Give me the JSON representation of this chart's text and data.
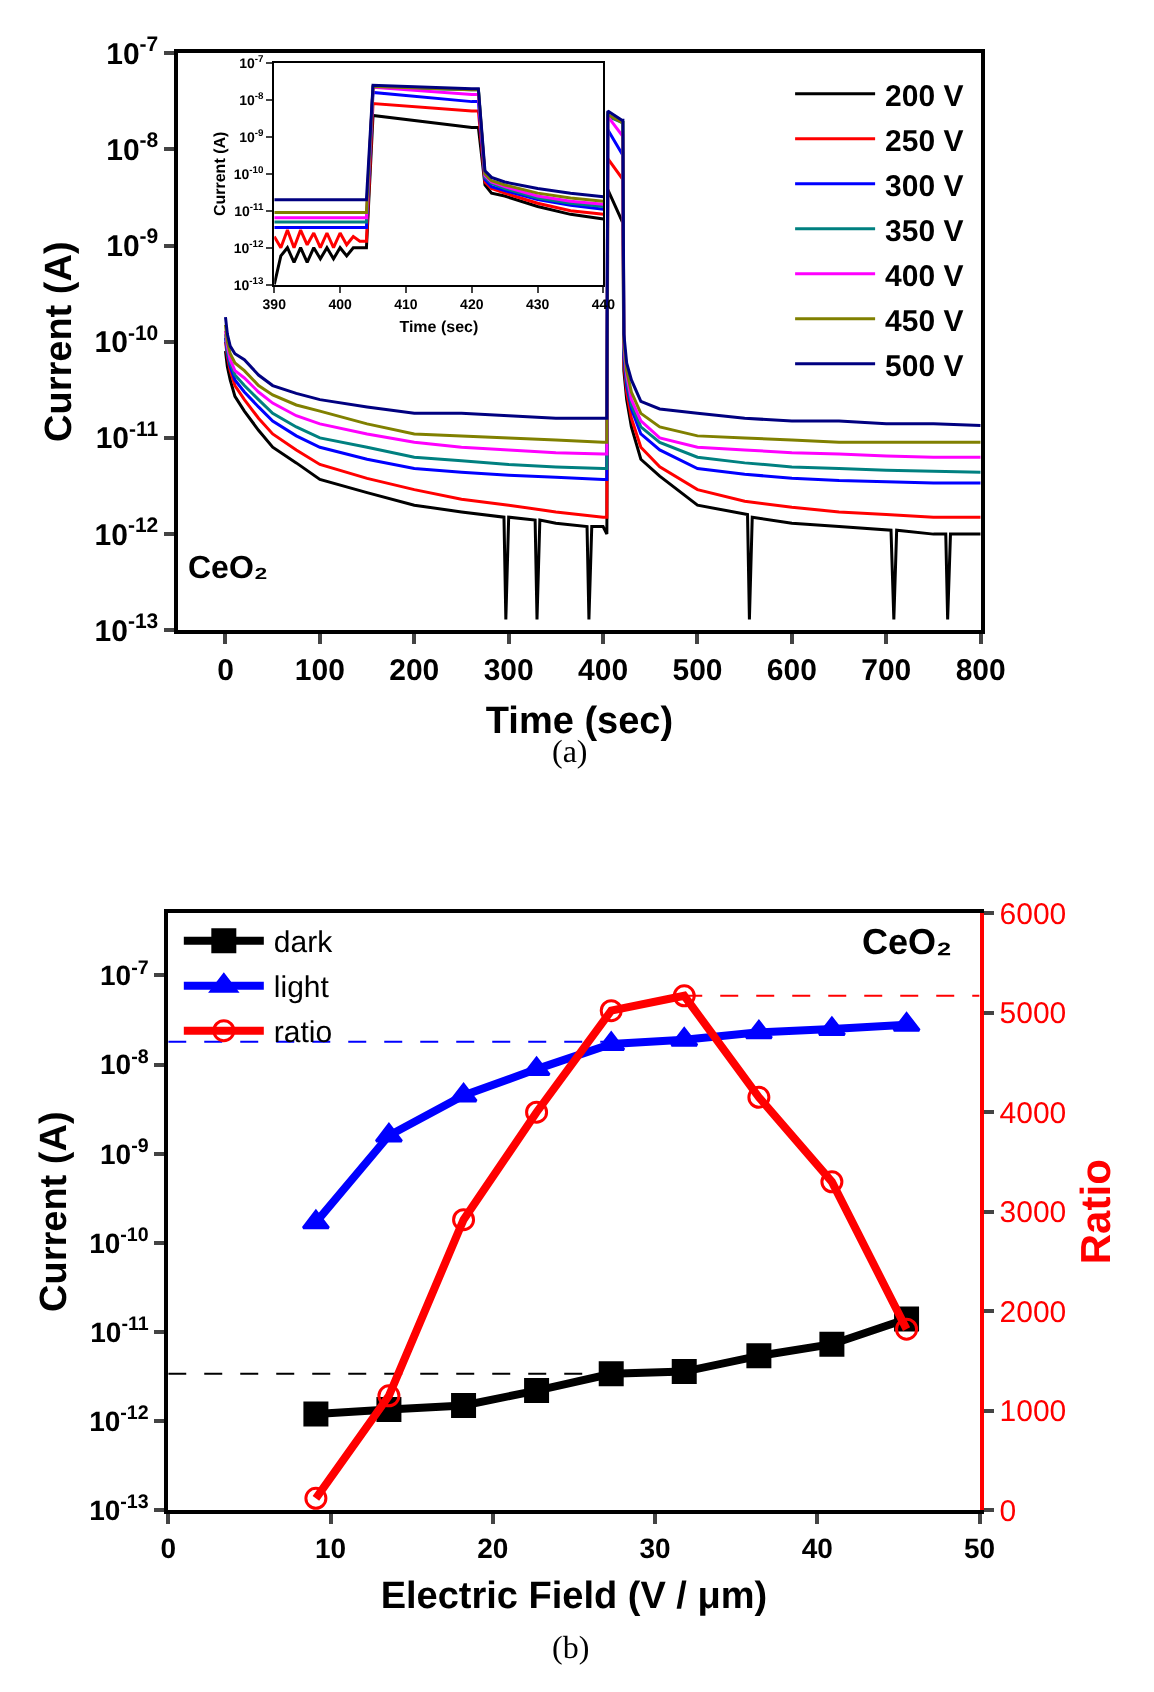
{
  "chart_data": [
    {
      "type": "line",
      "xlabel": "Time (sec)",
      "ylabel": "Current (A)",
      "log": "y",
      "legend": "top right",
      "marker": "none",
      "line_style": "solid",
      "xlim": [
        -50,
        800
      ],
      "xticks": [
        0,
        100,
        200,
        300,
        400,
        500,
        600,
        700,
        800
      ],
      "ylim": [
        1e-13,
        1e-07
      ],
      "yticks": [
        {
          "value": 1e-13,
          "label": "10$^{-13}$"
        },
        {
          "value": 1e-12,
          "label": "10$^{-12}$"
        },
        {
          "value": 1e-11,
          "label": "10$^{-11}$"
        },
        {
          "value": 1e-10,
          "label": "10$^{-10}$"
        },
        {
          "value": 1e-09,
          "label": "10$^{-9}$"
        },
        {
          "value": 1e-08,
          "label": "10$^{-8}$"
        },
        {
          "value": 1e-07,
          "label": "10$^{-7}$"
        }
      ],
      "x": [
        0,
        2,
        5,
        10,
        20,
        35,
        50,
        75,
        100,
        150,
        200,
        250,
        300,
        350,
        400,
        404,
        405,
        420,
        421,
        422,
        425,
        430,
        440,
        460,
        500,
        550,
        600,
        650,
        700,
        750,
        800
      ],
      "series": [
        {
          "name": "200 V",
          "color": "#000000",
          "x": [
            0,
            2,
            5,
            10,
            20,
            35,
            50,
            75,
            100,
            150,
            200,
            250,
            295,
            297,
            300,
            328,
            330,
            333,
            350,
            383,
            385,
            388,
            400,
            404,
            405,
            420,
            421,
            422,
            425,
            430,
            440,
            460,
            500,
            553,
            555,
            558,
            600,
            650,
            705,
            708,
            711,
            750,
            763,
            765,
            768,
            800
          ],
          "values": [
            8e-11,
            5.5e-11,
            4e-11,
            2.7e-11,
            1.9e-11,
            1.2e-11,
            8e-12,
            5.5e-12,
            3.7e-12,
            2.7e-12,
            2e-12,
            1.7e-12,
            1.5e-12,
            1.3e-13,
            1.5e-12,
            1.4e-12,
            1.3e-13,
            1.4e-12,
            1.3e-12,
            1.2e-12,
            1.3e-13,
            1.2e-12,
            1.2e-12,
            1e-12,
            3.8e-09,
            1.8e-09,
            1.8e-09,
            5e-11,
            2.5e-11,
            1.3e-11,
            6e-12,
            4e-12,
            2e-12,
            1.6e-12,
            1.3e-13,
            1.5e-12,
            1.3e-12,
            1.2e-12,
            1.1e-12,
            1.3e-13,
            1.1e-12,
            1e-12,
            1e-12,
            1.3e-13,
            1e-12,
            1e-12
          ]
        },
        {
          "name": "250 V",
          "color": "#ff0000",
          "values": [
            1e-10,
            7e-11,
            5e-11,
            3.5e-11,
            2.5e-11,
            1.6e-11,
            1.1e-11,
            7.5e-12,
            5.3e-12,
            3.8e-12,
            2.9e-12,
            2.3e-12,
            2e-12,
            1.7e-12,
            1.5e-12,
            1.5e-12,
            8e-09,
            5e-09,
            5e-09,
            6e-11,
            3e-11,
            1.6e-11,
            8e-12,
            5e-12,
            2.9e-12,
            2.2e-12,
            1.9e-12,
            1.7e-12,
            1.6e-12,
            1.5e-12,
            1.5e-12
          ]
        },
        {
          "name": "300 V",
          "color": "#0000ff",
          "values": [
            1.1e-10,
            7.5e-11,
            5.5e-11,
            4e-11,
            3e-11,
            2.1e-11,
            1.5e-11,
            1.05e-11,
            8e-12,
            6e-12,
            4.8e-12,
            4.4e-12,
            4.1e-12,
            3.9e-12,
            3.7e-12,
            3.7e-12,
            1.6e-08,
            9e-09,
            9e-09,
            7e-11,
            3.5e-11,
            2e-11,
            1.1e-11,
            7.5e-12,
            4.8e-12,
            4.2e-12,
            3.8e-12,
            3.6e-12,
            3.5e-12,
            3.4e-12,
            3.4e-12
          ]
        },
        {
          "name": "350 V",
          "color": "#008080",
          "values": [
            1.2e-10,
            8e-11,
            6e-11,
            4.5e-11,
            3.5e-11,
            2.5e-11,
            1.8e-11,
            1.3e-11,
            1e-11,
            8e-12,
            6.3e-12,
            5.8e-12,
            5.3e-12,
            5e-12,
            4.8e-12,
            4.8e-12,
            2.2e-08,
            1.9e-08,
            1.9e-08,
            8e-11,
            4e-11,
            2.2e-11,
            1.3e-11,
            9e-12,
            6.3e-12,
            5.5e-12,
            5e-12,
            4.8e-12,
            4.6e-12,
            4.5e-12,
            4.4e-12
          ]
        },
        {
          "name": "400 V",
          "color": "#ff00ff",
          "values": [
            1.3e-10,
            9e-11,
            6.5e-11,
            5e-11,
            4.2e-11,
            3e-11,
            2.3e-11,
            1.7e-11,
            1.4e-11,
            1.1e-11,
            9e-12,
            8e-12,
            7.5e-12,
            7e-12,
            6.8e-12,
            6.8e-12,
            2.2e-08,
            1.4e-08,
            1.4e-08,
            9e-11,
            4.5e-11,
            2.5e-11,
            1.5e-11,
            1e-11,
            8e-12,
            7.5e-12,
            7e-12,
            6.8e-12,
            6.5e-12,
            6.3e-12,
            6.3e-12
          ]
        },
        {
          "name": "450 V",
          "color": "#808000",
          "values": [
            1.5e-10,
            1e-10,
            7.5e-11,
            6e-11,
            5e-11,
            3.5e-11,
            2.8e-11,
            2.2e-11,
            1.9e-11,
            1.4e-11,
            1.1e-11,
            1.05e-11,
            1e-11,
            9.5e-12,
            9e-12,
            9e-12,
            2.3e-08,
            1.9e-08,
            1.9e-08,
            1e-10,
            5e-11,
            3e-11,
            1.8e-11,
            1.3e-11,
            1.05e-11,
            1e-11,
            9.5e-12,
            9e-12,
            9e-12,
            9e-12,
            9e-12
          ]
        },
        {
          "name": "500 V",
          "color": "#000080",
          "values": [
            1.8e-10,
            1.2e-10,
            9e-11,
            7.5e-11,
            6.5e-11,
            4.5e-11,
            3.5e-11,
            2.9e-11,
            2.5e-11,
            2.1e-11,
            1.8e-11,
            1.8e-11,
            1.7e-11,
            1.6e-11,
            1.6e-11,
            1.6e-11,
            2.5e-08,
            2e-08,
            2e-08,
            1.2e-10,
            6e-11,
            4e-11,
            2.4e-11,
            2e-11,
            1.8e-11,
            1.6e-11,
            1.5e-11,
            1.5e-11,
            1.4e-11,
            1.4e-11,
            1.35e-11
          ]
        }
      ],
      "annotations": [
        "CeO₂",
        "(a)"
      ]
    },
    {
      "type": "line",
      "xlabel": "Time (sec)",
      "ylabel": "Current (A)",
      "log": "y",
      "marker": "none",
      "line_style": "solid",
      "xlim": [
        390,
        440
      ],
      "xticks": [
        390,
        400,
        410,
        420,
        430,
        440
      ],
      "ylim": [
        1e-13,
        1e-07
      ],
      "yticks": [
        {
          "value": 1e-13,
          "label": "10$^{-13}$"
        },
        {
          "value": 1e-12,
          "label": "10$^{-12}$"
        },
        {
          "value": 1e-11,
          "label": "10$^{-11}$"
        },
        {
          "value": 1e-10,
          "label": "10$^{-10}$"
        },
        {
          "value": 1e-09,
          "label": "10$^{-9}$"
        },
        {
          "value": 1e-08,
          "label": "10$^{-8}$"
        },
        {
          "value": 1e-07,
          "label": "10$^{-7}$"
        }
      ],
      "x": [
        390,
        391,
        392,
        393,
        394,
        395,
        396,
        397,
        398,
        399,
        400,
        401,
        402,
        403,
        404,
        405,
        420,
        421,
        422,
        423,
        425,
        430,
        435,
        440
      ],
      "series": [
        {
          "color": "#000000",
          "values": [
            1e-13,
            6e-13,
            1e-12,
            4e-13,
            1e-12,
            4e-13,
            1e-12,
            5e-13,
            1e-12,
            5e-13,
            1e-12,
            6e-13,
            1e-12,
            1e-12,
            1e-12,
            3.8e-09,
            1.8e-09,
            1.8e-09,
            5e-11,
            3e-11,
            2.5e-11,
            1.3e-11,
            8e-12,
            6e-12
          ]
        },
        {
          "color": "#ff0000",
          "values": [
            2e-12,
            1e-12,
            3e-12,
            1e-12,
            3e-12,
            1.2e-12,
            2.5e-12,
            1e-12,
            2.5e-12,
            1e-12,
            2.5e-12,
            1.2e-12,
            2e-12,
            1.5e-12,
            1.5e-12,
            8e-09,
            5e-09,
            5e-09,
            6e-11,
            4e-11,
            3e-11,
            1.6e-11,
            1e-11,
            8e-12
          ]
        },
        {
          "color": "#0000ff",
          "values": [
            3.5e-12,
            3.5e-12,
            3.5e-12,
            3.5e-12,
            3.5e-12,
            3.5e-12,
            3.5e-12,
            3.5e-12,
            3.5e-12,
            3.5e-12,
            3.5e-12,
            3.5e-12,
            3.5e-12,
            3.5e-12,
            3.5e-12,
            1.6e-08,
            9e-09,
            9e-09,
            7e-11,
            4.5e-11,
            3.5e-11,
            2e-11,
            1.4e-11,
            1.1e-11
          ]
        },
        {
          "color": "#008080",
          "values": [
            5e-12,
            5e-12,
            5e-12,
            5e-12,
            5e-12,
            5e-12,
            5e-12,
            5e-12,
            5e-12,
            5e-12,
            5e-12,
            5e-12,
            5e-12,
            5e-12,
            5e-12,
            2.2e-08,
            1.9e-08,
            1.9e-08,
            8e-11,
            5.5e-11,
            4e-11,
            2.2e-11,
            1.6e-11,
            1.3e-11
          ]
        },
        {
          "color": "#ff00ff",
          "values": [
            6.5e-12,
            6.5e-12,
            6.5e-12,
            6.5e-12,
            6.5e-12,
            6.5e-12,
            6.5e-12,
            6.5e-12,
            6.5e-12,
            6.5e-12,
            6.5e-12,
            6.5e-12,
            6.5e-12,
            6.5e-12,
            6.5e-12,
            2.2e-08,
            1.4e-08,
            1.4e-08,
            9e-11,
            6e-11,
            4.5e-11,
            2.5e-11,
            1.8e-11,
            1.5e-11
          ]
        },
        {
          "color": "#808000",
          "values": [
            9e-12,
            9e-12,
            9e-12,
            9e-12,
            9e-12,
            9e-12,
            9e-12,
            9e-12,
            9e-12,
            9e-12,
            9e-12,
            9e-12,
            9e-12,
            9e-12,
            9e-12,
            2.3e-08,
            1.9e-08,
            1.9e-08,
            1e-10,
            6.5e-11,
            5e-11,
            3e-11,
            2.2e-11,
            1.8e-11
          ]
        },
        {
          "color": "#000080",
          "values": [
            2e-11,
            2e-11,
            2e-11,
            2e-11,
            2e-11,
            2e-11,
            2e-11,
            2e-11,
            2e-11,
            2e-11,
            2e-11,
            2e-11,
            2e-11,
            2e-11,
            2e-11,
            2.5e-08,
            2e-08,
            2e-08,
            1.2e-10,
            8e-11,
            6e-11,
            4e-11,
            3e-11,
            2.4e-11
          ]
        }
      ]
    },
    {
      "type": "line",
      "xlabel": "Electric Field (V / μm)",
      "ylabel": "Current (A)",
      "y2label": "Ratio",
      "log": "y",
      "legend": "top left",
      "line_style": "solid",
      "xlim": [
        0,
        50
      ],
      "xticks": [
        0,
        10,
        20,
        30,
        40,
        50
      ],
      "ylim": [
        1e-13,
        5e-07
      ],
      "yticks": [
        {
          "value": 1e-13,
          "label": "10$^{-13}$"
        },
        {
          "value": 1e-12,
          "label": "10$^{-12}$"
        },
        {
          "value": 1e-11,
          "label": "10$^{-11}$"
        },
        {
          "value": 1e-10,
          "label": "10$^{-10}$"
        },
        {
          "value": 1e-09,
          "label": "10$^{-9}$"
        },
        {
          "value": 1e-08,
          "label": "10$^{-8}$"
        },
        {
          "value": 1e-07,
          "label": "10$^{-7}$"
        }
      ],
      "y2lim": [
        0,
        6000
      ],
      "y2ticks": [
        0,
        1000,
        2000,
        3000,
        4000,
        5000,
        6000
      ],
      "x": [
        9.1,
        13.6,
        18.2,
        22.7,
        27.3,
        31.8,
        36.4,
        40.9,
        45.5
      ],
      "series": [
        {
          "name": "dark",
          "color": "#000000",
          "marker": "square",
          "values": [
            1.2e-12,
            1.35e-12,
            1.5e-12,
            2.2e-12,
            3.4e-12,
            3.6e-12,
            5.4e-12,
            7.3e-12,
            1.4e-11
          ]
        },
        {
          "name": "light",
          "color": "#0000ff",
          "marker": "triangle",
          "values": [
            1.7e-10,
            1.6e-09,
            4.5e-09,
            8.9e-09,
            1.7e-08,
            1.9e-08,
            2.3e-08,
            2.5e-08,
            2.8e-08
          ]
        },
        {
          "name": "ratio",
          "color": "#ff0000",
          "marker": "circle",
          "axis": "y2",
          "values": [
            120,
            1150,
            2920,
            4000,
            5020,
            5170,
            4150,
            3300,
            1820
          ]
        },
        {
          "color": "#0000ff",
          "marker": "none",
          "line_style": "dashed",
          "x": [
            0,
            27.3
          ],
          "values": [
            1.8e-08,
            1.8e-08
          ]
        },
        {
          "color": "#000000",
          "marker": "none",
          "line_style": "dashed",
          "x": [
            0,
            27.3
          ],
          "values": [
            3.4e-12,
            3.4e-12
          ]
        },
        {
          "color": "#ff0000",
          "marker": "none",
          "line_style": "dashed",
          "axis": "y2",
          "x": [
            31.8,
            50
          ],
          "values": [
            5170,
            5170
          ]
        }
      ],
      "annotations": [
        "CeO₂",
        "(b)"
      ]
    }
  ]
}
